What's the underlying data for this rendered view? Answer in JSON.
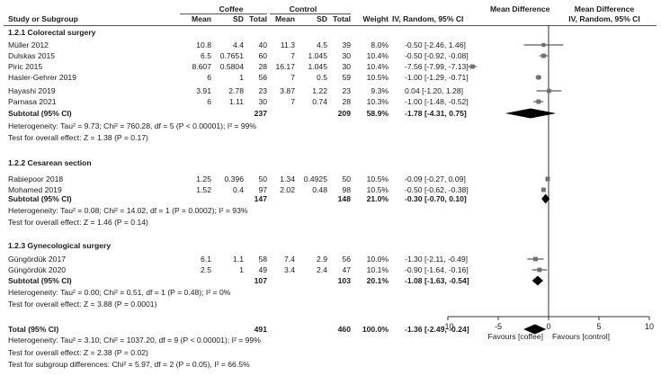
{
  "header": {
    "group1": "Coffee",
    "group2": "Control",
    "effect_group": "Mean Difference",
    "plot_title": "Mean Difference",
    "cols": {
      "study": "Study or Subgroup",
      "mean1": "Mean",
      "sd1": "SD",
      "total1": "Total",
      "mean2": "Mean",
      "sd2": "SD",
      "total2": "Total",
      "weight": "Weight",
      "ci": "IV, Random, 95% CI",
      "plot_ci": "IV, Random, 95% CI"
    }
  },
  "subgroups": [
    {
      "title": "1.2.1 Colorectal surgery",
      "studies": [
        {
          "name": "Müller 2012",
          "mean1": "10.8",
          "sd1": "4.4",
          "total1": "40",
          "mean2": "11.3",
          "sd2": "4.5",
          "total2": "39",
          "weight": "8.0%",
          "ci_text": "-0.50 [-2.46, 1.46]"
        },
        {
          "name": "Dulskas 2015",
          "mean1": "6.5",
          "sd1": "0.7651",
          "total1": "60",
          "mean2": "7",
          "sd2": "1.045",
          "total2": "30",
          "weight": "10.4%",
          "ci_text": "-0.50 [-0.92, -0.08]"
        },
        {
          "name": "Piric 2015",
          "mean1": "8.607",
          "sd1": "0.5804",
          "total1": "28",
          "mean2": "16.17",
          "sd2": "1.045",
          "total2": "30",
          "weight": "10.4%",
          "ci_text": "-7.56 [-7.99, -7.13]"
        },
        {
          "name": "Hasler-Gehrer 2019",
          "mean1": "6",
          "sd1": "1",
          "total1": "56",
          "mean2": "7",
          "sd2": "0.5",
          "total2": "59",
          "weight": "10.5%",
          "ci_text": "-1.00 [-1.29, -0.71]"
        },
        {
          "name": "Hayashi 2019",
          "mean1": "3.91",
          "sd1": "2.78",
          "total1": "23",
          "mean2": "3.87",
          "sd2": "1.22",
          "total2": "23",
          "weight": "9.3%",
          "ci_text": "0.04 [-1.20, 1.28]"
        },
        {
          "name": "Parnasa 2021",
          "mean1": "6",
          "sd1": "1.11",
          "total1": "30",
          "mean2": "7",
          "sd2": "0.74",
          "total2": "28",
          "weight": "10.3%",
          "ci_text": "-1.00 [-1.48, -0.52]"
        }
      ],
      "subtotal": {
        "label": "Subtotal (95% CI)",
        "total1": "237",
        "total2": "209",
        "weight": "58.9%",
        "ci_text": "-1.78 [-4.31, 0.75]"
      },
      "heterogeneity": "Heterogeneity: Tau² = 9.73; Chi² = 760.28, df = 5 (P < 0.00001); I² = 99%",
      "overall_effect": "Test for overall effect: Z = 1.38 (P = 0.17)"
    },
    {
      "title": "1.2.2 Cesarean section",
      "studies": [
        {
          "name": "Rabiepoor 2018",
          "mean1": "1.25",
          "sd1": "0.396",
          "total1": "50",
          "mean2": "1.34",
          "sd2": "0.4925",
          "total2": "50",
          "weight": "10.5%",
          "ci_text": "-0.09 [-0.27, 0.09]"
        },
        {
          "name": "Mohamed 2019",
          "mean1": "1.52",
          "sd1": "0.4",
          "total1": "97",
          "mean2": "2.02",
          "sd2": "0.48",
          "total2": "98",
          "weight": "10.5%",
          "ci_text": "-0.50 [-0.62, -0.38]"
        }
      ],
      "subtotal": {
        "label": "Subtotal (95% CI)",
        "total1": "147",
        "total2": "148",
        "weight": "21.0%",
        "ci_text": "-0.30 [-0.70, 0.10]"
      },
      "heterogeneity": "Heterogeneity: Tau² = 0.08; Chi² = 14.02, df = 1 (P = 0.0002); I² = 93%",
      "overall_effect": "Test for overall effect: Z = 1.46 (P = 0.14)"
    },
    {
      "title": "1.2.3 Gynecological surgery",
      "studies": [
        {
          "name": "Güngördük 2017",
          "mean1": "6.1",
          "sd1": "1.1",
          "total1": "58",
          "mean2": "7.4",
          "sd2": "2.9",
          "total2": "56",
          "weight": "10.0%",
          "ci_text": "-1.30 [-2.11, -0.49]"
        },
        {
          "name": "Güngördük 2020",
          "mean1": "2.5",
          "sd1": "1",
          "total1": "49",
          "mean2": "3.4",
          "sd2": "2.4",
          "total2": "47",
          "weight": "10.1%",
          "ci_text": "-0.90 [-1.64, -0.16]"
        }
      ],
      "subtotal": {
        "label": "Subtotal (95% CI)",
        "total1": "107",
        "total2": "103",
        "weight": "20.1%",
        "ci_text": "-1.08 [-1.63, -0.54]"
      },
      "heterogeneity": "Heterogeneity: Tau² = 0.00; Chi² = 0.51, df = 1 (P = 0.48); I² = 0%",
      "overall_effect": "Test for overall effect: Z = 3.88 (P = 0.0001)"
    }
  ],
  "total": {
    "label": "Total (95% CI)",
    "total1": "491",
    "total2": "460",
    "weight": "100.0%",
    "ci_text": "-1.36 [-2.49, -0.24]"
  },
  "footer": {
    "heterogeneity": "Heterogeneity: Tau² = 3.10; Chi² = 1037.20, df = 9 (P < 0.00001); I² = 99%",
    "overall_effect": "Test for overall effect: Z = 2.38 (P = 0.02)",
    "subgroup_diff": "Test for subgroup differences: Chi² = 5.97, df = 2 (P = 0.05), I² = 66.5%"
  },
  "chart_data": {
    "type": "forest",
    "xlim": [
      -10,
      10
    ],
    "xticks": [
      -10,
      -5,
      0,
      5,
      10
    ],
    "xtick_labels": [
      "-10",
      "-5",
      "0",
      "5",
      "10"
    ],
    "favours_left": "Favours [coffee]",
    "favours_right": "Favours [control]",
    "studies": [
      {
        "name": "Müller 2012",
        "est": -0.5,
        "lo": -2.46,
        "hi": 1.46,
        "weight": 8.0
      },
      {
        "name": "Dulskas 2015",
        "est": -0.5,
        "lo": -0.92,
        "hi": -0.08,
        "weight": 10.4
      },
      {
        "name": "Piric 2015",
        "est": -7.56,
        "lo": -7.99,
        "hi": -7.13,
        "weight": 10.4
      },
      {
        "name": "Hasler-Gehrer 2019",
        "est": -1.0,
        "lo": -1.29,
        "hi": -0.71,
        "weight": 10.5
      },
      {
        "name": "Hayashi 2019",
        "est": 0.04,
        "lo": -1.2,
        "hi": 1.28,
        "weight": 9.3
      },
      {
        "name": "Parnasa 2021",
        "est": -1.0,
        "lo": -1.48,
        "hi": -0.52,
        "weight": 10.3
      },
      {
        "name": "Rabiepoor 2018",
        "est": -0.09,
        "lo": -0.27,
        "hi": 0.09,
        "weight": 10.5
      },
      {
        "name": "Mohamed 2019",
        "est": -0.5,
        "lo": -0.62,
        "hi": -0.38,
        "weight": 10.5
      },
      {
        "name": "Güngördük 2017",
        "est": -1.3,
        "lo": -2.11,
        "hi": -0.49,
        "weight": 10.0
      },
      {
        "name": "Güngördük 2020",
        "est": -0.9,
        "lo": -1.64,
        "hi": -0.16,
        "weight": 10.1
      }
    ],
    "pooled": [
      {
        "name": "Subtotal 1.2.1",
        "est": -1.78,
        "lo": -4.31,
        "hi": 0.75
      },
      {
        "name": "Subtotal 1.2.2",
        "est": -0.3,
        "lo": -0.7,
        "hi": 0.1
      },
      {
        "name": "Subtotal 1.2.3",
        "est": -1.08,
        "lo": -1.63,
        "hi": -0.54
      },
      {
        "name": "Total",
        "est": -1.36,
        "lo": -2.49,
        "hi": -0.24
      }
    ]
  }
}
